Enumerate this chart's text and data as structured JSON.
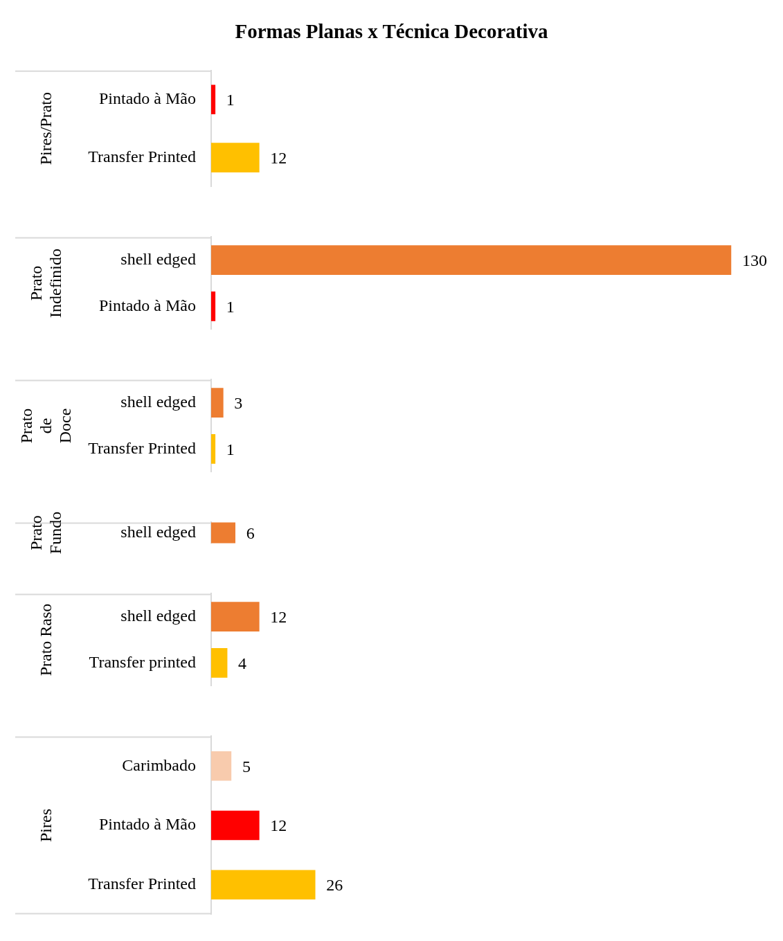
{
  "chart_data": [
    {
      "type": "bar",
      "orientation": "horizontal",
      "title": "Formas Planas x Técnica Decorativa",
      "ylabel": "Pires/Prato",
      "categories": [
        "Pintado à Mão",
        "Transfer Printed"
      ],
      "values": [
        1,
        12
      ],
      "colors": [
        "#ff0000",
        "#ffc000"
      ],
      "data_labels": true
    },
    {
      "type": "bar",
      "orientation": "horizontal",
      "ylabel": "Prato Indefinido",
      "categories": [
        "shell edged",
        "Pintado à Mão"
      ],
      "values": [
        130,
        1
      ],
      "colors": [
        "#ed7d31",
        "#ff0000"
      ],
      "data_labels": true
    },
    {
      "type": "bar",
      "orientation": "horizontal",
      "ylabel": "Prato de Doce",
      "categories": [
        "shell edged",
        "Transfer Printed"
      ],
      "values": [
        3,
        1
      ],
      "colors": [
        "#ed7d31",
        "#ffc000"
      ],
      "data_labels": true
    },
    {
      "type": "bar",
      "orientation": "horizontal",
      "ylabel": "Prato Fundo",
      "categories": [
        "shell edged"
      ],
      "values": [
        6
      ],
      "colors": [
        "#ed7d31"
      ],
      "data_labels": true
    },
    {
      "type": "bar",
      "orientation": "horizontal",
      "ylabel": "Prato Raso",
      "categories": [
        "shell edged",
        "Transfer printed"
      ],
      "values": [
        12,
        4
      ],
      "colors": [
        "#ed7d31",
        "#ffc000"
      ],
      "data_labels": true
    },
    {
      "type": "bar",
      "orientation": "horizontal",
      "ylabel": "Pires",
      "categories": [
        "Carimbado",
        "Pintado à Mão",
        "Transfer Printed"
      ],
      "values": [
        5,
        12,
        26
      ],
      "colors": [
        "#f8cbad",
        "#ff0000",
        "#ffc000"
      ],
      "data_labels": true
    }
  ]
}
